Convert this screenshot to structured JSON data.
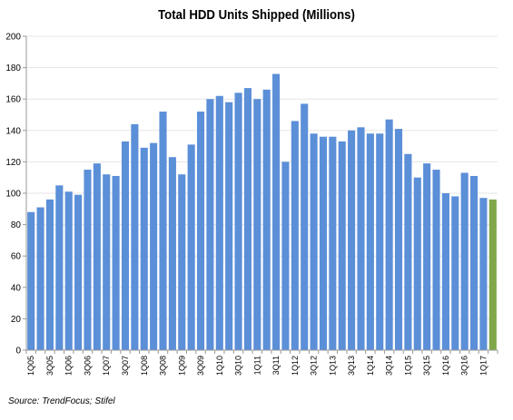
{
  "chart_data": {
    "type": "bar",
    "title": "Total HDD Units Shipped (Millions)",
    "xlabel": "",
    "ylabel": "",
    "ylim": [
      0,
      200
    ],
    "yticks": [
      0,
      20,
      40,
      60,
      80,
      100,
      120,
      140,
      160,
      180,
      200
    ],
    "categories": [
      "1Q05",
      "2Q05",
      "3Q05",
      "4Q05",
      "1Q06",
      "2Q06",
      "3Q06",
      "4Q06",
      "1Q07",
      "2Q07",
      "3Q07",
      "4Q07",
      "1Q08",
      "2Q08",
      "3Q08",
      "4Q08",
      "1Q09",
      "2Q09",
      "3Q09",
      "4Q09",
      "1Q10",
      "2Q10",
      "3Q10",
      "4Q10",
      "1Q11",
      "2Q11",
      "3Q11",
      "4Q11",
      "1Q12",
      "2Q12",
      "3Q12",
      "4Q12",
      "1Q13",
      "2Q13",
      "3Q13",
      "4Q13",
      "1Q14",
      "2Q14",
      "3Q14",
      "4Q14",
      "1Q15",
      "2Q15",
      "3Q15",
      "4Q15",
      "1Q16",
      "2Q16",
      "3Q16",
      "4Q16",
      "1Q17",
      "2Q17"
    ],
    "x_tick_labels": [
      "1Q05",
      "",
      "3Q05",
      "",
      "1Q06",
      "",
      "3Q06",
      "",
      "1Q07",
      "",
      "3Q07",
      "",
      "1Q08",
      "",
      "3Q08",
      "",
      "1Q09",
      "",
      "3Q09",
      "",
      "1Q10",
      "",
      "3Q10",
      "",
      "1Q11",
      "",
      "3Q11",
      "",
      "1Q12",
      "",
      "3Q12",
      "",
      "1Q13",
      "",
      "3Q13",
      "",
      "1Q14",
      "",
      "3Q14",
      "",
      "1Q15",
      "",
      "3Q15",
      "",
      "1Q16",
      "",
      "3Q16",
      "",
      "1Q17",
      ""
    ],
    "values": [
      88,
      91,
      96,
      105,
      101,
      99,
      115,
      119,
      112,
      111,
      133,
      144,
      129,
      132,
      152,
      123,
      112,
      131,
      152,
      160,
      162,
      158,
      164,
      167,
      160,
      166,
      176,
      120,
      146,
      157,
      138,
      136,
      136,
      133,
      140,
      142,
      138,
      138,
      147,
      141,
      125,
      110,
      119,
      115,
      100,
      98,
      113,
      111,
      97,
      96
    ],
    "highlight_index": 49,
    "grid": true,
    "legend": "none",
    "colors": {
      "bar": "#5b8fd8",
      "highlight": "#80a84a",
      "grid": "#e6e6e6",
      "axis": "#999999"
    }
  },
  "source": "Source: TrendFocus; Stifel"
}
